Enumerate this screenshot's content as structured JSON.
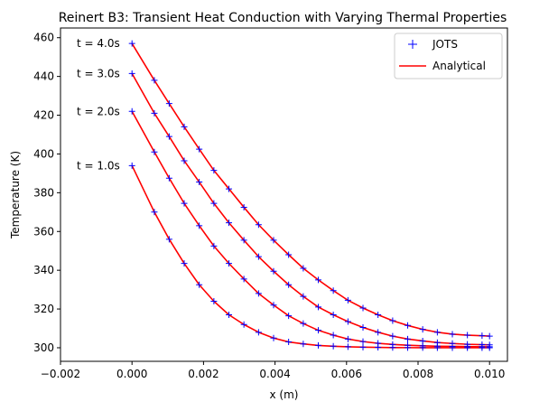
{
  "chart_data": {
    "type": "line",
    "title": "Reinert B3: Transient Heat Conduction with Varying Thermal Properties",
    "xlabel": "x (m)",
    "ylabel": "Temperature (K)",
    "xlim": [
      -0.002,
      0.0105
    ],
    "ylim": [
      293,
      465
    ],
    "xticks": [
      -0.002,
      0.0,
      0.002,
      0.004,
      0.006,
      0.008,
      0.01
    ],
    "xtick_labels": [
      "−0.002",
      "0.000",
      "0.002",
      "0.004",
      "0.006",
      "0.008",
      "0.010"
    ],
    "yticks": [
      300,
      320,
      340,
      360,
      380,
      400,
      420,
      440,
      460
    ],
    "ytick_labels": [
      "300",
      "320",
      "340",
      "360",
      "380",
      "400",
      "420",
      "440",
      "460"
    ],
    "grid": false,
    "legend": {
      "position": "top-right",
      "entries": [
        {
          "label": "JOTS",
          "marker": "+",
          "color": "#0000ff"
        },
        {
          "label": "Analytical",
          "line": "solid",
          "color": "#ff0000"
        }
      ]
    },
    "x": [
      0.0,
      0.000625,
      0.00104,
      0.00146,
      0.00188,
      0.00229,
      0.00271,
      0.00313,
      0.00354,
      0.00396,
      0.00438,
      0.00479,
      0.00521,
      0.00563,
      0.00604,
      0.00646,
      0.00688,
      0.00729,
      0.00771,
      0.00813,
      0.00854,
      0.00896,
      0.00938,
      0.00979,
      0.01
    ],
    "series": [
      {
        "annotation": "t = 1.0s",
        "values": [
          394.0,
          370.0,
          356.0,
          343.5,
          332.5,
          324.0,
          317.0,
          312.0,
          308.0,
          305.0,
          303.0,
          302.0,
          301.2,
          300.8,
          300.5,
          300.3,
          300.2,
          300.1,
          300.05,
          300.03,
          300.02,
          300.01,
          300.0,
          300.0,
          300.0
        ]
      },
      {
        "annotation": "t = 2.0s",
        "values": [
          422.0,
          401.0,
          387.5,
          374.5,
          363.0,
          352.5,
          343.5,
          335.5,
          328.0,
          322.0,
          316.5,
          312.5,
          309.0,
          306.5,
          304.5,
          303.2,
          302.3,
          301.7,
          301.3,
          301.0,
          300.8,
          300.7,
          300.6,
          300.5,
          300.5
        ]
      },
      {
        "annotation": "t = 3.0s",
        "values": [
          441.5,
          421.0,
          409.0,
          396.5,
          385.5,
          374.5,
          364.5,
          355.5,
          347.0,
          339.5,
          332.5,
          326.5,
          321.0,
          317.0,
          313.5,
          310.5,
          308.0,
          306.0,
          304.5,
          303.5,
          302.7,
          302.2,
          301.8,
          301.6,
          301.5
        ]
      },
      {
        "annotation": "t = 4.0s",
        "values": [
          457.0,
          438.0,
          426.0,
          414.0,
          402.5,
          391.5,
          382.0,
          372.5,
          363.5,
          355.5,
          348.0,
          341.0,
          335.0,
          329.5,
          324.5,
          320.5,
          317.0,
          314.0,
          311.5,
          309.5,
          308.0,
          307.0,
          306.5,
          306.2,
          306.0
        ]
      }
    ]
  }
}
